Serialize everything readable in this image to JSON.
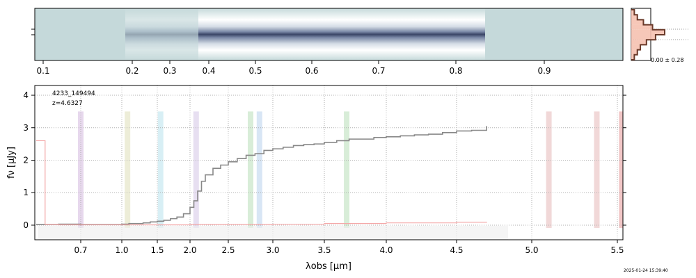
{
  "chart_data": [
    {
      "type": "heatmap",
      "description_panel": "2D spectrum",
      "x_ticks": [
        {
          "value": 0.1,
          "label": "0.1"
        },
        {
          "value": 0.2,
          "label": "0.2"
        },
        {
          "value": 0.3,
          "label": "0.3"
        },
        {
          "value": 0.4,
          "label": "0.4"
        },
        {
          "value": 0.5,
          "label": "0.5"
        },
        {
          "value": 0.6,
          "label": "0.6"
        },
        {
          "value": 0.7,
          "label": "0.7"
        },
        {
          "value": 0.8,
          "label": "0.8"
        },
        {
          "value": 0.9,
          "label": "0.9"
        }
      ],
      "xlim": [
        0.09,
        1.0
      ],
      "trace_start": 0.37,
      "trace_end": 0.837,
      "colors": {
        "background": "#c5d9da",
        "trace": "#3a4566",
        "halo": "#ffffff"
      }
    },
    {
      "type": "histogram",
      "annotation": "0.00 ± 0.28",
      "values": [
        1,
        2,
        4,
        7,
        11,
        8,
        5,
        3,
        2,
        1
      ],
      "colors": {
        "fill": "#f5c1b0",
        "edge": "#6a3a2a"
      }
    },
    {
      "type": "line",
      "object_id": "4233_149494",
      "redshift_label": "z=4.6327",
      "xlabel": "λobs [μm]",
      "ylabel": "fν [μJy]",
      "xlim": [
        0.6,
        5.55
      ],
      "ylim": [
        -0.45,
        4.3
      ],
      "x_ticks": [
        {
          "value": 0.7,
          "label": "0.7"
        },
        {
          "value": 1.0,
          "label": "1.0"
        },
        {
          "value": 1.5,
          "label": "1.5"
        },
        {
          "value": 2.0,
          "label": "2.0"
        },
        {
          "value": 2.5,
          "label": "2.5"
        },
        {
          "value": 3.0,
          "label": "3.0"
        },
        {
          "value": 3.5,
          "label": "3.5"
        },
        {
          "value": 4.0,
          "label": "4.0"
        },
        {
          "value": 4.5,
          "label": "4.5"
        },
        {
          "value": 5.0,
          "label": "5.0"
        },
        {
          "value": 5.5,
          "label": "5.5"
        }
      ],
      "y_ticks": [
        0,
        1,
        2,
        3,
        4
      ],
      "grid": true,
      "series": [
        {
          "name": "flux",
          "color": "#888888",
          "x": [
            0.6,
            0.65,
            0.7,
            0.8,
            0.9,
            1.0,
            1.1,
            1.2,
            1.3,
            1.4,
            1.5,
            1.6,
            1.7,
            1.8,
            1.9,
            2.0,
            2.05,
            2.1,
            2.15,
            2.2,
            2.3,
            2.4,
            2.5,
            2.6,
            2.7,
            2.8,
            2.9,
            3.0,
            3.1,
            3.2,
            3.3,
            3.4,
            3.5,
            3.6,
            3.7,
            3.8,
            3.9,
            4.0,
            4.1,
            4.2,
            4.3,
            4.4,
            4.5,
            4.6,
            4.7
          ],
          "y": [
            0.02,
            0.03,
            0.02,
            0.02,
            0.02,
            0.03,
            0.05,
            0.05,
            0.07,
            0.1,
            0.12,
            0.15,
            0.2,
            0.25,
            0.35,
            0.55,
            0.75,
            1.05,
            1.35,
            1.55,
            1.75,
            1.85,
            1.95,
            2.05,
            2.15,
            2.2,
            2.3,
            2.35,
            2.4,
            2.45,
            2.48,
            2.5,
            2.55,
            2.6,
            2.65,
            2.65,
            2.7,
            2.72,
            2.75,
            2.78,
            2.8,
            2.85,
            2.9,
            2.92,
            3.05
          ]
        },
        {
          "name": "error",
          "color": "#f4a9a9",
          "x": [
            0.6,
            0.62,
            0.65,
            1.0,
            1.5,
            2.0,
            2.5,
            3.0,
            3.5,
            4.0,
            4.5,
            4.7
          ],
          "y": [
            2.6,
            0.02,
            0.01,
            0.01,
            0.01,
            0.02,
            0.02,
            0.03,
            0.05,
            0.07,
            0.09,
            0.1
          ]
        }
      ],
      "line_bands": [
        {
          "x": 0.7,
          "color": "#c9a8d8"
        },
        {
          "x": 1.08,
          "color": "#d8d8a8"
        },
        {
          "x": 1.55,
          "color": "#a8dce8"
        },
        {
          "x": 2.08,
          "color": "#c9b8e0"
        },
        {
          "x": 2.75,
          "color": "#a8d8a8"
        },
        {
          "x": 2.85,
          "color": "#a8c8e8"
        },
        {
          "x": 3.68,
          "color": "#a8d8a8"
        },
        {
          "x": 5.1,
          "color": "#e0a8a8"
        },
        {
          "x": 5.38,
          "color": "#e0a8a8"
        },
        {
          "x": 5.54,
          "color": "#e08080"
        }
      ]
    }
  ],
  "timestamp": "2025-01-24 15:39:40"
}
